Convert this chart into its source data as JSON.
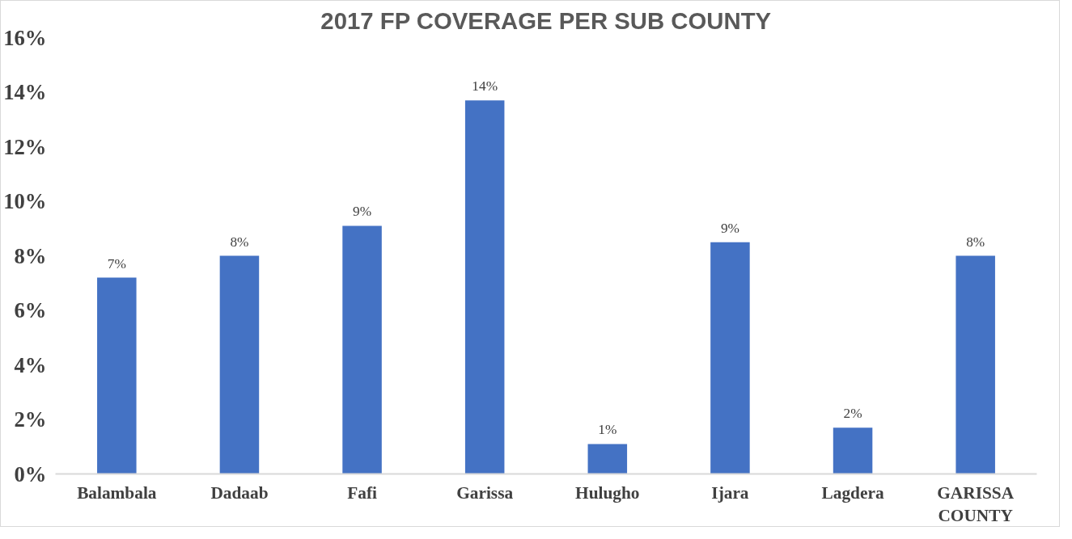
{
  "chart_data": {
    "type": "bar",
    "title": "2017 FP COVERAGE PER SUB COUNTY",
    "categories": [
      "Balambala",
      "Dadaab",
      "Fafi",
      "Garissa",
      "Hulugho",
      "Ijara",
      "Lagdera",
      "GARISSA COUNTY"
    ],
    "values": [
      7.2,
      8.0,
      9.1,
      13.7,
      1.1,
      8.5,
      1.7,
      8.0
    ],
    "value_labels": [
      "7%",
      "8%",
      "9%",
      "14%",
      "1%",
      "9%",
      "2%",
      "8%"
    ],
    "color": "#4472c4",
    "ylim": [
      0,
      16
    ],
    "yticks": [
      {
        "value": 0,
        "label": "0%"
      },
      {
        "value": 2,
        "label": "2%"
      },
      {
        "value": 4,
        "label": "4%"
      },
      {
        "value": 6,
        "label": "6%"
      },
      {
        "value": 8,
        "label": "8%"
      },
      {
        "value": 10,
        "label": "10%"
      },
      {
        "value": 12,
        "label": "12%"
      },
      {
        "value": 14,
        "label": "14%"
      },
      {
        "value": 16,
        "label": "16%"
      }
    ],
    "grid": false
  }
}
